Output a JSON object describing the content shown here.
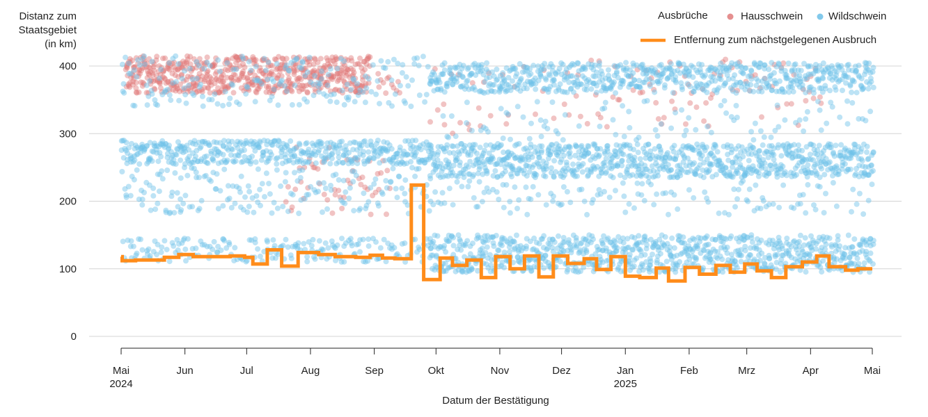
{
  "chart_data": {
    "type": "scatter",
    "ylabel_lines": [
      "Distanz zum",
      "Staatsgebiet",
      "(in km)"
    ],
    "xlabel": "Datum der Bestätigung",
    "ylim": [
      0,
      400
    ],
    "yticks": [
      0,
      100,
      200,
      300,
      400
    ],
    "x_range_days": [
      0,
      365
    ],
    "xticks": [
      {
        "label": "Mai",
        "sub": "2024",
        "day": 0
      },
      {
        "label": "Jun",
        "sub": "",
        "day": 31
      },
      {
        "label": "Jul",
        "sub": "",
        "day": 61
      },
      {
        "label": "Aug",
        "sub": "",
        "day": 92
      },
      {
        "label": "Sep",
        "sub": "",
        "day": 123
      },
      {
        "label": "Okt",
        "sub": "",
        "day": 153
      },
      {
        "label": "Nov",
        "sub": "",
        "day": 184
      },
      {
        "label": "Dez",
        "sub": "",
        "day": 214
      },
      {
        "label": "Jan",
        "sub": "2025",
        "day": 245
      },
      {
        "label": "Feb",
        "sub": "",
        "day": 276
      },
      {
        "label": "Mrz",
        "sub": "",
        "day": 304
      },
      {
        "label": "Apr",
        "sub": "",
        "day": 335
      },
      {
        "label": "Mai",
        "sub": "",
        "day": 365
      }
    ],
    "legend": {
      "title": "Ausbrüche",
      "domestic_label": "Hausschwein",
      "wild_label": "Wildschwein",
      "line_label": "Entfernung zum nächstgelegenen Ausbruch"
    },
    "colors": {
      "domestic": "#e07b7b",
      "wild": "#6cc0e8",
      "line": "#ff8c1a",
      "grid": "#d4d4d4"
    },
    "line_series": {
      "name": "Entfernung zum nächstgelegenen Ausbruch",
      "points": [
        [
          0,
          118
        ],
        [
          0.5,
          112
        ],
        [
          7,
          113
        ],
        [
          21,
          117
        ],
        [
          28,
          121
        ],
        [
          35,
          118
        ],
        [
          45,
          118
        ],
        [
          53,
          119
        ],
        [
          60,
          117
        ],
        [
          64,
          107
        ],
        [
          71,
          128
        ],
        [
          78,
          104
        ],
        [
          86,
          124
        ],
        [
          96,
          121
        ],
        [
          104,
          118
        ],
        [
          114,
          117
        ],
        [
          121,
          120
        ],
        [
          127,
          116
        ],
        [
          133,
          115
        ],
        [
          141,
          224
        ],
        [
          147,
          84
        ],
        [
          155,
          116
        ],
        [
          161,
          105
        ],
        [
          168,
          113
        ],
        [
          175,
          87
        ],
        [
          182,
          118
        ],
        [
          189,
          100
        ],
        [
          196,
          119
        ],
        [
          203,
          88
        ],
        [
          210,
          119
        ],
        [
          217,
          108
        ],
        [
          225,
          115
        ],
        [
          231,
          99
        ],
        [
          238,
          118
        ],
        [
          245,
          89
        ],
        [
          252,
          87
        ],
        [
          260,
          101
        ],
        [
          266,
          82
        ],
        [
          274,
          102
        ],
        [
          281,
          92
        ],
        [
          289,
          105
        ],
        [
          296,
          95
        ],
        [
          303,
          107
        ],
        [
          309,
          97
        ],
        [
          316,
          87
        ],
        [
          323,
          103
        ],
        [
          331,
          110
        ],
        [
          338,
          119
        ],
        [
          344,
          103
        ],
        [
          352,
          98
        ],
        [
          358,
          100
        ],
        [
          365,
          100
        ]
      ]
    },
    "scatter_series": [
      {
        "name": "Hausschwein",
        "color_key": "domestic",
        "clusters": [
          {
            "from": 2,
            "to": 120,
            "min": 360,
            "max": 415,
            "per_day": 5
          },
          {
            "from": 124,
            "to": 135,
            "min": 355,
            "max": 400,
            "per_day": 1
          },
          {
            "from": 80,
            "to": 130,
            "min": 180,
            "max": 280,
            "per_day": 1
          },
          {
            "from": 150,
            "to": 205,
            "min": 300,
            "max": 400,
            "per_day": 0.35
          },
          {
            "from": 205,
            "to": 340,
            "min": 310,
            "max": 412,
            "per_day": 0.6
          }
        ]
      },
      {
        "name": "Wildschwein",
        "color_key": "wild",
        "clusters": [
          {
            "from": 0,
            "to": 150,
            "min": 255,
            "max": 290,
            "per_day": 3
          },
          {
            "from": 0,
            "to": 150,
            "min": 180,
            "max": 250,
            "per_day": 1.2
          },
          {
            "from": 0,
            "to": 150,
            "min": 110,
            "max": 145,
            "per_day": 1.3
          },
          {
            "from": 0,
            "to": 150,
            "min": 340,
            "max": 415,
            "per_day": 1.3
          },
          {
            "from": 150,
            "to": 365,
            "min": 235,
            "max": 285,
            "per_day": 4
          },
          {
            "from": 150,
            "to": 365,
            "min": 360,
            "max": 405,
            "per_day": 3.2
          },
          {
            "from": 150,
            "to": 365,
            "min": 95,
            "max": 150,
            "per_day": 4
          },
          {
            "from": 150,
            "to": 365,
            "min": 180,
            "max": 230,
            "per_day": 0.6
          },
          {
            "from": 150,
            "to": 365,
            "min": 290,
            "max": 350,
            "per_day": 0.4
          }
        ]
      }
    ]
  }
}
